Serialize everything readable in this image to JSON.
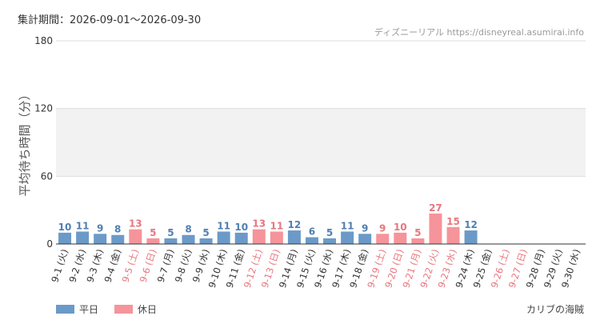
{
  "header": {
    "period": "集計期間：2026-09-01～2026-09-30",
    "source": "ディズニーリアル https://disneyreal.asumirai.info"
  },
  "legend": {
    "items": [
      {
        "label": "平日",
        "color": "#6b9ac8"
      },
      {
        "label": "休日",
        "color": "#f5949a"
      }
    ]
  },
  "footer": {
    "place": "カリブの海賊"
  },
  "colors": {
    "weekday": "#6b9ac8",
    "weekday_label": "#4f7fb3",
    "holiday": "#f5949a",
    "holiday_label": "#e8767e",
    "tick_default": "#333333",
    "tick_holiday": "#e8767e",
    "band": "#f2f2f2",
    "grid": "#dddddd",
    "axis": "#333333"
  },
  "chart_data": {
    "type": "bar",
    "ylabel": "平均待ち時間（分）",
    "ylim": [
      0,
      180
    ],
    "yticks": [
      0,
      60,
      120,
      180
    ],
    "categories": [
      "9-1 (火)",
      "9-2 (水)",
      "9-3 (木)",
      "9-4 (金)",
      "9-5 (土)",
      "9-6 (日)",
      "9-7 (月)",
      "9-8 (火)",
      "9-9 (水)",
      "9-10 (木)",
      "9-11 (金)",
      "9-12 (土)",
      "9-13 (日)",
      "9-14 (月)",
      "9-15 (火)",
      "9-16 (水)",
      "9-17 (木)",
      "9-18 (金)",
      "9-19 (土)",
      "9-20 (日)",
      "9-21 (月)",
      "9-22 (火)",
      "9-23 (水)",
      "9-24 (木)",
      "9-25 (金)",
      "9-26 (土)",
      "9-27 (日)",
      "9-28 (月)",
      "9-29 (火)",
      "9-30 (水)"
    ],
    "values": [
      10,
      11,
      9,
      8,
      13,
      5,
      5,
      8,
      5,
      11,
      10,
      13,
      11,
      12,
      6,
      5,
      11,
      9,
      9,
      10,
      5,
      27,
      15,
      12,
      null,
      null,
      null,
      null,
      null,
      null
    ],
    "day_type": [
      "平日",
      "平日",
      "平日",
      "平日",
      "休日",
      "休日",
      "平日",
      "平日",
      "平日",
      "平日",
      "平日",
      "休日",
      "休日",
      "平日",
      "平日",
      "平日",
      "平日",
      "平日",
      "休日",
      "休日",
      "休日",
      "休日",
      "休日",
      "平日",
      "平日",
      "休日",
      "休日",
      "平日",
      "平日",
      "平日"
    ],
    "grid": true,
    "legend_position": "bottom-left"
  }
}
